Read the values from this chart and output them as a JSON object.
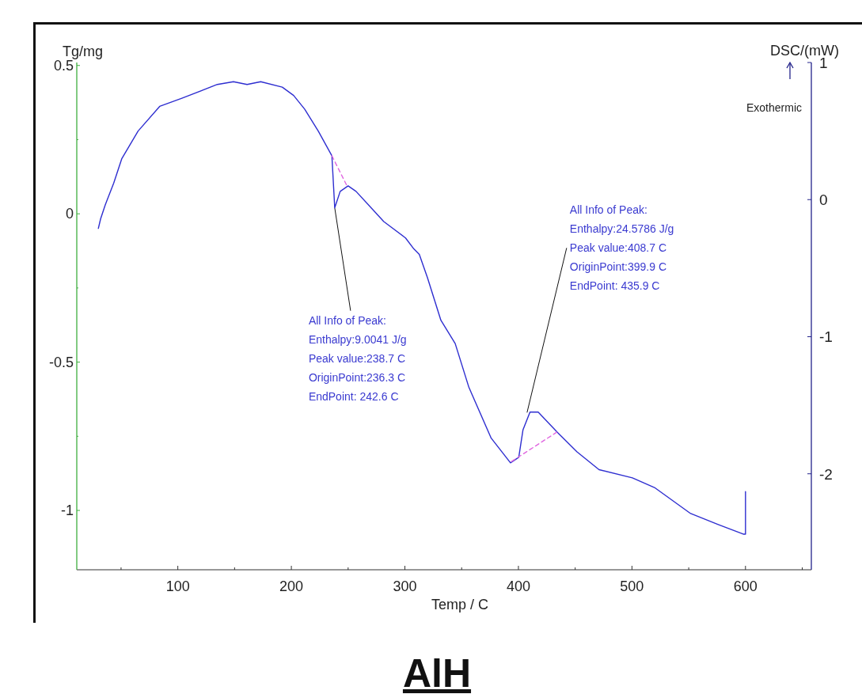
{
  "chart_data": {
    "type": "line",
    "title": "AlH",
    "xlabel": "Temp / C",
    "ylabel": "Tg/mg",
    "y2label": "DSC/(mW)",
    "xlim": [
      11,
      658
    ],
    "xticks": [
      {
        "value": 50,
        "label": null
      },
      100,
      {
        "value": 150,
        "label": null
      },
      200,
      {
        "value": 250,
        "label": null
      },
      300,
      {
        "value": 350,
        "label": null
      },
      400,
      {
        "value": 450,
        "label": null
      },
      500,
      {
        "value": 550,
        "label": null
      },
      600,
      {
        "value": 650,
        "label": null
      }
    ],
    "ylim": [
      -1.2,
      0.51
    ],
    "yticks": [
      -1,
      {
        "value": -0.75,
        "label": null
      },
      -0.5,
      {
        "value": -0.25,
        "label": null
      },
      0,
      {
        "value": 0.25,
        "label": null
      },
      0.5
    ],
    "y2lim": [
      -2.7,
      1
    ],
    "y2ticks": [
      -2,
      -1,
      0,
      1
    ],
    "grid": false,
    "series": [
      {
        "color": "#2e2ed0",
        "axis": "y2",
        "line_style": "solid",
        "x": [
          30,
          32,
          36,
          43.5,
          50.7,
          65,
          84,
          103.6,
          134.8,
          149,
          161,
          173,
          192,
          202,
          211.7,
          223.7,
          235.7,
          238.2,
          243,
          250,
          257,
          281.4,
          300.6,
          307.9,
          312.7,
          319.9,
          331.7,
          344.3,
          356.4,
          376,
          393,
          400.3,
          404,
          410.2,
          417.4,
          434.6,
          451.6,
          471,
          500.4,
          519.8,
          551.7,
          576,
          598,
          600,
          600
        ],
        "values": [
          -0.21,
          -0.14,
          -0.04,
          0.12,
          0.3,
          0.5,
          0.68,
          0.74,
          0.84,
          0.86,
          0.84,
          0.86,
          0.82,
          0.76,
          0.66,
          0.5,
          0.32,
          -0.06,
          0.06,
          0.1,
          0.06,
          -0.16,
          -0.28,
          -0.36,
          -0.4,
          -0.57,
          -0.88,
          -1.05,
          -1.37,
          -1.74,
          -1.92,
          -1.88,
          -1.68,
          -1.55,
          -1.55,
          -1.7,
          -1.84,
          -1.97,
          -2.03,
          -2.1,
          -2.29,
          -2.37,
          -2.44,
          -2.44,
          -2.13
        ]
      },
      {
        "color": "#e066e0",
        "axis": "y2",
        "line_style": "dashed",
        "x": [
          235.7,
          249
        ],
        "values": [
          0.32,
          0.1
        ]
      },
      {
        "color": "#e066e0",
        "axis": "y2",
        "line_style": "dashed",
        "x": [
          394,
          435
        ],
        "values": [
          -1.91,
          -1.69
        ]
      }
    ],
    "annotations": [
      "Exothermic",
      {
        "text": "All Info of Peak:\nEnthalpy:9.0041 J/g\nPeak value:238.7 C\nOriginPoint:236.3 C\nEndPoint: 242.6 C",
        "x": 238.2,
        "y": 0.02
      },
      {
        "text": "All Info of Peak:\nEnthalpy:24.5786 J/g\nPeak value:408.7 C\nOriginPoint:399.9 C\nEndPoint: 435.9 C",
        "x": 407.6,
        "y": -0.67
      }
    ]
  }
}
